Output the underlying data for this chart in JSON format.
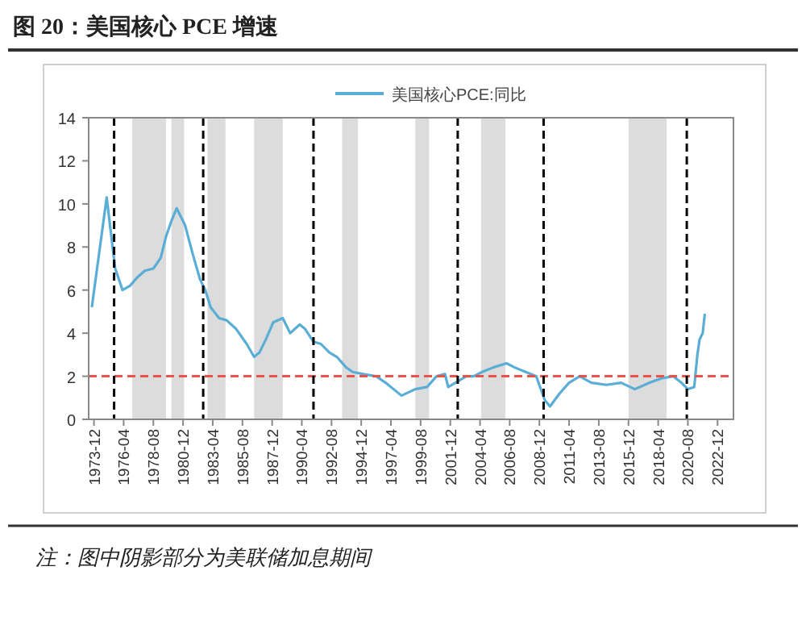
{
  "chart_data": {
    "type": "line",
    "title": "图 20：美国核心 PCE 增速",
    "annotations": [
      "注：图中阴影部分为美联储加息期间"
    ],
    "xlim": [
      "1973-07",
      "2024-03"
    ],
    "xticks": [
      "1973-12",
      "1976-04",
      "1978-08",
      "1980-12",
      "1983-04",
      "1985-08",
      "1987-12",
      "1990-04",
      "1992-08",
      "1994-12",
      "1997-04",
      "1999-08",
      "2001-12",
      "2004-04",
      "2006-08",
      "2008-12",
      "2011-04",
      "2013-08",
      "2015-12",
      "2018-04",
      "2020-08",
      "2022-12"
    ],
    "ylim": [
      0,
      14
    ],
    "yticks": [
      0,
      2,
      4,
      6,
      8,
      10,
      12,
      14
    ],
    "grid": false,
    "legend": "top",
    "marker": "none",
    "line_style": "solid",
    "series": [
      {
        "name": "美国核心PCE:同比",
        "color": "#5aaed6",
        "x": [
          "1973-10",
          "1974-12",
          "1975-08",
          "1976-03",
          "1976-10",
          "1977-05",
          "1977-12",
          "1978-08",
          "1979-03",
          "1979-08",
          "1980-01",
          "1980-06",
          "1981-02",
          "1981-09",
          "1982-04",
          "1982-09",
          "1983-02",
          "1983-10",
          "1984-05",
          "1985-02",
          "1985-12",
          "1986-07",
          "1986-12",
          "1987-06",
          "1988-01",
          "1988-10",
          "1989-05",
          "1990-02",
          "1990-07",
          "1991-03",
          "1991-10",
          "1992-06",
          "1993-01",
          "1993-10",
          "1994-04",
          "1995-02",
          "1996-02",
          "1996-11",
          "1998-02",
          "1999-03",
          "2000-02",
          "2000-11",
          "2001-07",
          "2001-10",
          "2002-05",
          "2003-03",
          "2003-10",
          "2004-06",
          "2005-04",
          "2006-05",
          "2007-01",
          "2007-11",
          "2008-09",
          "2009-05",
          "2009-10",
          "2010-07",
          "2011-04",
          "2012-02",
          "2013-01",
          "2014-03",
          "2015-05",
          "2016-06",
          "2017-08",
          "2018-07",
          "2019-06",
          "2020-02",
          "2020-08",
          "2021-02",
          "2021-05",
          "2021-07",
          "2021-10",
          "2021-12"
        ],
        "values": [
          5.2,
          10.3,
          7.0,
          6.0,
          6.2,
          6.6,
          6.9,
          7.0,
          7.5,
          8.5,
          9.2,
          9.8,
          9.0,
          7.7,
          6.5,
          6.0,
          5.2,
          4.7,
          4.6,
          4.2,
          3.5,
          2.9,
          3.1,
          3.7,
          4.5,
          4.7,
          4.0,
          4.4,
          4.2,
          3.6,
          3.5,
          3.1,
          2.9,
          2.4,
          2.2,
          2.1,
          2.0,
          1.7,
          1.1,
          1.4,
          1.5,
          2.0,
          2.1,
          1.5,
          1.7,
          2.0,
          2.0,
          2.2,
          2.4,
          2.6,
          2.4,
          2.2,
          2.0,
          0.9,
          0.6,
          1.2,
          1.7,
          2.0,
          1.7,
          1.6,
          1.7,
          1.4,
          1.7,
          1.9,
          2.0,
          1.7,
          1.4,
          1.5,
          3.0,
          3.7,
          4.0,
          4.9
        ]
      }
    ],
    "ref_lines": [
      {
        "axis": "y",
        "value": 2,
        "color": "#e8534a",
        "line_style": "dashed"
      },
      {
        "axis": "x",
        "value": "1975-07",
        "color": "#000000",
        "line_style": "dashed"
      },
      {
        "axis": "x",
        "value": "1982-07",
        "color": "#000000",
        "line_style": "dashed"
      },
      {
        "axis": "x",
        "value": "1991-03",
        "color": "#000000",
        "line_style": "dashed"
      },
      {
        "axis": "x",
        "value": "2002-07",
        "color": "#000000",
        "line_style": "dashed"
      },
      {
        "axis": "x",
        "value": "2009-04",
        "color": "#000000",
        "line_style": "dashed"
      },
      {
        "axis": "x",
        "value": "2020-07",
        "color": "#000000",
        "line_style": "dashed"
      }
    ],
    "bands": [
      {
        "axis": "x",
        "from": "1976-12",
        "to": "1979-08",
        "color": "#dcdcdc"
      },
      {
        "axis": "x",
        "from": "1980-01",
        "to": "1981-01",
        "color": "#dcdcdc"
      },
      {
        "axis": "x",
        "from": "1982-11",
        "to": "1984-04",
        "color": "#dcdcdc"
      },
      {
        "axis": "x",
        "from": "1986-07",
        "to": "1988-10",
        "color": "#dcdcdc"
      },
      {
        "axis": "x",
        "from": "1993-06",
        "to": "1994-09",
        "color": "#dcdcdc"
      },
      {
        "axis": "x",
        "from": "1999-03",
        "to": "2000-04",
        "color": "#dcdcdc"
      },
      {
        "axis": "x",
        "from": "2004-05",
        "to": "2006-04",
        "color": "#dcdcdc"
      },
      {
        "axis": "x",
        "from": "2015-12",
        "to": "2018-12",
        "color": "#dcdcdc"
      }
    ]
  }
}
